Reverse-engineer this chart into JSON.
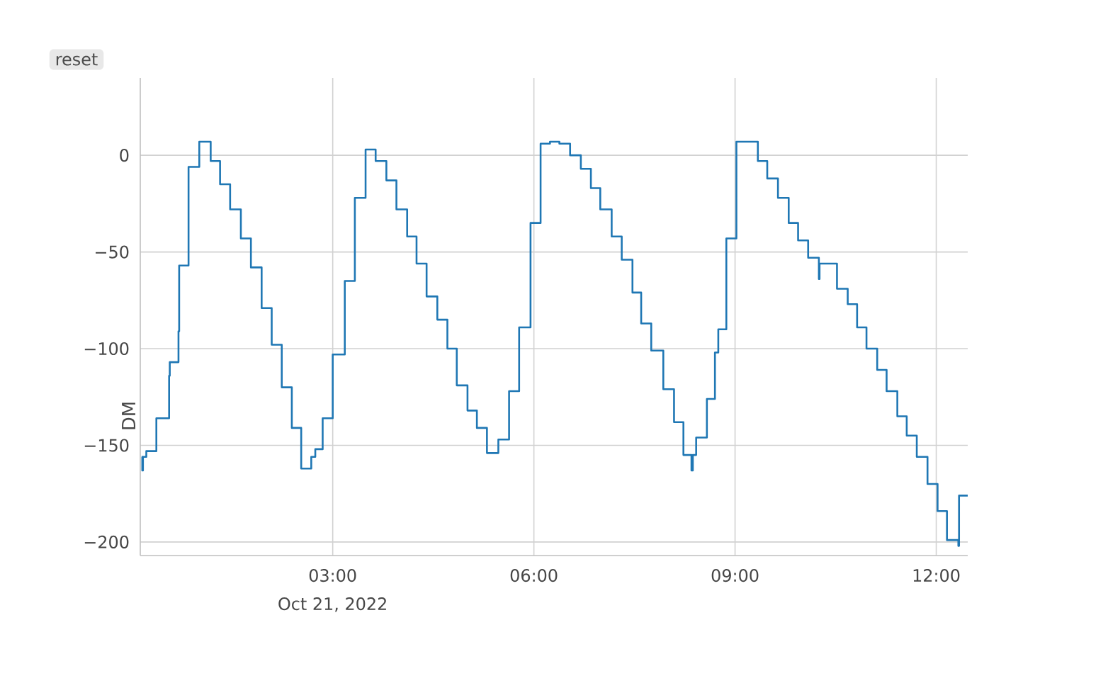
{
  "chart_data": {
    "type": "step",
    "ylabel": "DM",
    "annotations": [
      "Oct 21, 2022",
      "reset"
    ],
    "x": [
      0.15,
      0.16,
      0.17,
      0.22,
      0.37,
      0.56,
      0.57,
      0.7,
      0.71,
      0.85,
      1.01,
      1.18,
      1.32,
      1.47,
      1.63,
      1.78,
      1.94,
      2.09,
      2.24,
      2.39,
      2.53,
      2.68,
      2.74,
      2.85,
      3.0,
      3.18,
      3.33,
      3.49,
      3.64,
      3.8,
      3.95,
      4.11,
      4.25,
      4.4,
      4.56,
      4.71,
      4.85,
      5.01,
      5.15,
      5.3,
      5.47,
      5.63,
      5.78,
      5.95,
      6.1,
      6.24,
      6.38,
      6.54,
      6.7,
      6.85,
      6.99,
      7.16,
      7.31,
      7.47,
      7.6,
      7.75,
      7.93,
      8.09,
      8.23,
      8.35,
      8.37,
      8.42,
      8.58,
      8.7,
      8.75,
      8.87,
      9.02,
      9.34,
      9.48,
      9.64,
      9.8,
      9.94,
      10.09,
      10.25,
      10.26,
      10.52,
      10.68,
      10.82,
      10.96,
      11.12,
      11.26,
      11.42,
      11.56,
      11.71,
      11.87,
      12.02,
      12.16,
      12.33,
      12.34,
      12.47
    ],
    "series": [
      {
        "color": "#1f77b4",
        "values": [
          -156,
          -163,
          -156,
          -153,
          -136,
          -114,
          -107,
          -91,
          -57,
          -6,
          7,
          -3,
          -15,
          -28,
          -43,
          -58,
          -79,
          -98,
          -120,
          -141,
          -162,
          -156,
          -152,
          -136,
          -103,
          -65,
          -22,
          3,
          -3,
          -13,
          -28,
          -42,
          -56,
          -73,
          -85,
          -100,
          -119,
          -132,
          -141,
          -154,
          -147,
          -122,
          -89,
          -35,
          6,
          7,
          6,
          0,
          -7,
          -17,
          -28,
          -42,
          -54,
          -71,
          -87,
          -101,
          -121,
          -138,
          -155,
          -163,
          -155,
          -146,
          -126,
          -102,
          -90,
          -43,
          7,
          -3,
          -12,
          -22,
          -35,
          -44,
          -53,
          -64,
          -56,
          -69,
          -77,
          -89,
          -100,
          -111,
          -122,
          -135,
          -145,
          -156,
          -170,
          -184,
          -199,
          -202,
          -176,
          -176
        ]
      }
    ],
    "xlim": [
      0.13,
      12.47
    ],
    "ylim": [
      -207,
      40
    ],
    "xticks": [
      {
        "value": 3,
        "label": "03:00"
      },
      {
        "value": 6,
        "label": "06:00"
      },
      {
        "value": 9,
        "label": "09:00"
      },
      {
        "value": 12,
        "label": "12:00"
      }
    ],
    "yticks": [
      {
        "value": -200,
        "label": "−200"
      },
      {
        "value": -150,
        "label": "−150"
      },
      {
        "value": -100,
        "label": "−100"
      },
      {
        "value": -50,
        "label": "−50"
      },
      0
    ],
    "grid": true,
    "marker": "none",
    "line_style": "solid"
  }
}
